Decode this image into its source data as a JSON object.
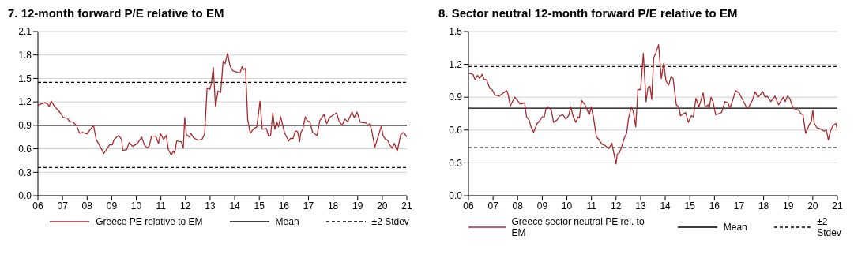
{
  "chart_data": [
    {
      "type": "line",
      "title": "7. 12-month forward P/E relative to EM",
      "xlim": [
        2006,
        2021
      ],
      "xticks": [
        {
          "value": 2006,
          "label": "06"
        },
        {
          "value": 2007,
          "label": "07"
        },
        {
          "value": 2008,
          "label": "08"
        },
        {
          "value": 2009,
          "label": "09"
        },
        {
          "value": 2010,
          "label": "10"
        },
        {
          "value": 2011,
          "label": "11"
        },
        {
          "value": 2012,
          "label": "12"
        },
        {
          "value": 2013,
          "label": "13"
        },
        {
          "value": 2014,
          "label": "14"
        },
        {
          "value": 2015,
          "label": "15"
        },
        {
          "value": 2016,
          "label": "16"
        },
        {
          "value": 2017,
          "label": "17"
        },
        {
          "value": 2018,
          "label": "18"
        },
        {
          "value": 2019,
          "label": "19"
        },
        {
          "value": 2020,
          "label": "20"
        },
        {
          "value": 2021,
          "label": "21"
        }
      ],
      "ylim": [
        0,
        2.1
      ],
      "yticks": [
        {
          "value": 0,
          "label": "0.0"
        },
        {
          "value": 0.3,
          "label": "0.3"
        },
        {
          "value": 0.6,
          "label": "0.6"
        },
        {
          "value": 0.9,
          "label": "0.9"
        },
        {
          "value": 1.2,
          "label": "1.2"
        },
        {
          "value": 1.5,
          "label": "1.5"
        },
        {
          "value": 1.8,
          "label": "1.8"
        },
        {
          "value": 2.1,
          "label": "2.1"
        }
      ],
      "grid": "y",
      "legend": "bottom",
      "marker": "none",
      "line_style": "solid",
      "ref_lines": [
        {
          "axis": "y",
          "value": 0.9,
          "label": "Mean",
          "color": "#000000",
          "line_style": "solid"
        },
        {
          "axis": "y",
          "value": 1.45,
          "label": "±2 Stdev",
          "color": "#000000",
          "line_style": "dashed"
        },
        {
          "axis": "y",
          "value": 0.36,
          "label": null,
          "color": "#000000",
          "line_style": "dashed"
        }
      ],
      "series": [
        {
          "name": "Greece PE relative to EM",
          "color": "#a8282c",
          "x": [
            2006,
            2006.29,
            2006.4,
            2006.46,
            2006.54,
            2006.68,
            2006.8,
            2006.91,
            2007.03,
            2007.2,
            2007.28,
            2007.43,
            2007.57,
            2007.69,
            2007.82,
            2007.99,
            2008.26,
            2008.37,
            2008.51,
            2008.68,
            2008.91,
            2009.02,
            2009.1,
            2009.28,
            2009.4,
            2009.45,
            2009.61,
            2009.71,
            2009.85,
            2010.05,
            2010.22,
            2010.33,
            2010.45,
            2010.52,
            2010.62,
            2010.79,
            2010.9,
            2010.99,
            2011.11,
            2011.22,
            2011.3,
            2011.42,
            2011.51,
            2011.56,
            2011.64,
            2011.82,
            2011.91,
            2011.97,
            2012.04,
            2012.16,
            2012.21,
            2012.33,
            2012.5,
            2012.67,
            2012.78,
            2012.88,
            2012.99,
            2013.05,
            2013.13,
            2013.22,
            2013.32,
            2013.43,
            2013.53,
            2013.61,
            2013.71,
            2013.81,
            2013.92,
            2014.21,
            2014.3,
            2014.35,
            2014.44,
            2014.53,
            2014.63,
            2014.78,
            2014.9,
            2015.03,
            2015.12,
            2015.29,
            2015.38,
            2015.46,
            2015.55,
            2015.63,
            2015.71,
            2015.78,
            2015.87,
            2016.03,
            2016.2,
            2016.26,
            2016.37,
            2016.47,
            2016.56,
            2016.64,
            2016.69,
            2016.77,
            2016.87,
            2016.95,
            2017.06,
            2017.17,
            2017.35,
            2017.46,
            2017.63,
            2017.74,
            2017.85,
            2018.14,
            2018.25,
            2018.37,
            2018.48,
            2018.6,
            2018.77,
            2018.86,
            2018.97,
            2019.11,
            2019.34,
            2019.43,
            2019.48,
            2019.56,
            2019.7,
            2019.96,
            2020.03,
            2020.13,
            2020.22,
            2020.3,
            2020.41,
            2020.49,
            2020.61,
            2020.75,
            2020.87,
            2021
          ],
          "values": [
            1.16,
            1.19,
            1.17,
            1.14,
            1.21,
            1.14,
            1.1,
            1.06,
            1,
            0.99,
            0.95,
            0.94,
            0.9,
            0.8,
            0.81,
            0.79,
            0.9,
            0.72,
            0.64,
            0.54,
            0.65,
            0.65,
            0.72,
            0.77,
            0.72,
            0.58,
            0.59,
            0.68,
            0.63,
            0.67,
            0.75,
            0.65,
            0.61,
            0.63,
            0.76,
            0.76,
            0.67,
            0.79,
            0.72,
            0.77,
            0.59,
            0.52,
            0.57,
            0.54,
            0.7,
            0.69,
            0.61,
            1,
            0.78,
            0.75,
            0.8,
            0.74,
            0.71,
            0.72,
            0.79,
            1.38,
            1.36,
            1.43,
            1.64,
            1.14,
            1.34,
            1.32,
            1.72,
            1.69,
            1.82,
            1.66,
            1.6,
            1.57,
            1.65,
            1.61,
            1.63,
            0.97,
            0.8,
            0.86,
            0.88,
            1.21,
            0.85,
            0.86,
            0.76,
            0.77,
            1.06,
            0.85,
            0.95,
            0.88,
            1.01,
            0.8,
            0.7,
            0.73,
            0.73,
            0.83,
            0.82,
            0.69,
            0.81,
            0.85,
            1.01,
            0.96,
            0.94,
            0.81,
            0.77,
            0.96,
            1.04,
            0.92,
            1,
            1.06,
            0.95,
            0.9,
            0.98,
            0.95,
            1.07,
            1,
            1.07,
            0.94,
            0.93,
            0.9,
            0.92,
            0.85,
            0.62,
            0.89,
            0.77,
            0.72,
            0.71,
            0.65,
            0.61,
            0.67,
            0.57,
            0.78,
            0.81,
            0.75
          ]
        }
      ]
    },
    {
      "type": "line",
      "title": "8. Sector neutral 12-month forward P/E relative to EM",
      "xlim": [
        2006,
        2021
      ],
      "xticks": [
        {
          "value": 2006,
          "label": "06"
        },
        {
          "value": 2007,
          "label": "07"
        },
        {
          "value": 2008,
          "label": "08"
        },
        {
          "value": 2009,
          "label": "09"
        },
        {
          "value": 2010,
          "label": "10"
        },
        {
          "value": 2011,
          "label": "11"
        },
        {
          "value": 2012,
          "label": "12"
        },
        {
          "value": 2013,
          "label": "13"
        },
        {
          "value": 2014,
          "label": "14"
        },
        {
          "value": 2015,
          "label": "15"
        },
        {
          "value": 2016,
          "label": "16"
        },
        {
          "value": 2017,
          "label": "17"
        },
        {
          "value": 2018,
          "label": "18"
        },
        {
          "value": 2019,
          "label": "19"
        },
        {
          "value": 2020,
          "label": "20"
        },
        {
          "value": 2021,
          "label": "21"
        }
      ],
      "ylim": [
        0,
        1.5
      ],
      "yticks": [
        {
          "value": 0,
          "label": "0.0"
        },
        {
          "value": 0.3,
          "label": "0.3"
        },
        {
          "value": 0.6,
          "label": "0.6"
        },
        {
          "value": 0.9,
          "label": "0.9"
        },
        {
          "value": 1.2,
          "label": "1.2"
        },
        {
          "value": 1.5,
          "label": "1.5"
        }
      ],
      "grid": "y",
      "legend": "bottom",
      "marker": "none",
      "line_style": "solid",
      "ref_lines": [
        {
          "axis": "y",
          "value": 0.8,
          "label": "Mean",
          "color": "#000000",
          "line_style": "solid"
        },
        {
          "axis": "y",
          "value": 1.18,
          "label": "±2 Stdev",
          "color": "#000000",
          "line_style": "dashed"
        },
        {
          "axis": "y",
          "value": 0.44,
          "label": null,
          "color": "#000000",
          "line_style": "dashed"
        }
      ],
      "series": [
        {
          "name": "Greece sector neutral PE rel. to EM",
          "color": "#a8282c",
          "x": [
            2006,
            2006.18,
            2006.27,
            2006.37,
            2006.45,
            2006.56,
            2006.64,
            2006.73,
            2006.87,
            2006.96,
            2007.08,
            2007.25,
            2007.42,
            2007.56,
            2007.62,
            2007.7,
            2007.88,
            2008,
            2008.08,
            2008.16,
            2008.28,
            2008.36,
            2008.47,
            2008.54,
            2008.65,
            2008.79,
            2008.91,
            2009,
            2009.08,
            2009.16,
            2009.25,
            2009.37,
            2009.46,
            2009.59,
            2009.71,
            2009.84,
            2009.96,
            2010.07,
            2010.16,
            2010.26,
            2010.37,
            2010.45,
            2010.51,
            2010.6,
            2010.74,
            2010.91,
            2010.99,
            2011.08,
            2011.2,
            2011.31,
            2011.43,
            2011.54,
            2011.71,
            2011.83,
            2011.88,
            2012,
            2012.05,
            2012.13,
            2012.22,
            2012.34,
            2012.43,
            2012.51,
            2012.62,
            2012.7,
            2012.8,
            2012.89,
            2013,
            2013.11,
            2013.22,
            2013.3,
            2013.38,
            2013.45,
            2013.53,
            2013.61,
            2013.73,
            2013.84,
            2013.94,
            2014.03,
            2014.14,
            2014.24,
            2014.32,
            2014.45,
            2014.56,
            2014.62,
            2014.74,
            2014.83,
            2014.94,
            2015.06,
            2015.14,
            2015.25,
            2015.37,
            2015.54,
            2015.62,
            2015.75,
            2015.79,
            2015.86,
            2015.94,
            2016.05,
            2016.17,
            2016.29,
            2016.43,
            2016.55,
            2016.63,
            2016.74,
            2016.86,
            2017,
            2017.14,
            2017.32,
            2017.37,
            2017.54,
            2017.66,
            2017.77,
            2017.89,
            2017.97,
            2018.06,
            2018.15,
            2018.29,
            2018.46,
            2018.61,
            2018.8,
            2018.88,
            2018.97,
            2019.06,
            2019.2,
            2019.31,
            2019.43,
            2019.52,
            2019.6,
            2019.71,
            2019.86,
            2019.94,
            2020,
            2020.06,
            2020.17,
            2020.32,
            2020.46,
            2020.55,
            2020.63,
            2020.72,
            2020.82,
            2020.94,
            2021
          ],
          "values": [
            1.12,
            1.11,
            1.06,
            1.1,
            1.07,
            1.11,
            1.06,
            1.06,
            0.98,
            0.97,
            0.92,
            0.91,
            0.94,
            0.96,
            0.92,
            0.82,
            0.9,
            0.87,
            0.84,
            0.84,
            0.85,
            0.72,
            0.69,
            0.63,
            0.58,
            0.66,
            0.69,
            0.72,
            0.72,
            0.8,
            0.81,
            0.78,
            0.67,
            0.69,
            0.73,
            0.74,
            0.7,
            0.73,
            0.81,
            0.72,
            0.67,
            0.72,
            0.71,
            0.87,
            0.83,
            0.74,
            0.81,
            0.72,
            0.54,
            0.51,
            0.47,
            0.46,
            0.43,
            0.48,
            0.42,
            0.29,
            0.38,
            0.39,
            0.44,
            0.53,
            0.57,
            0.71,
            0.81,
            0.77,
            0.63,
            0.97,
            0.97,
            1.3,
            0.86,
            0.99,
            1,
            0.88,
            1.26,
            1.3,
            1.38,
            1.07,
            1.21,
            1.05,
            1.01,
            1.09,
            1.07,
            0.83,
            0.81,
            0.73,
            0.75,
            0.76,
            0.67,
            0.73,
            0.72,
            0.89,
            0.81,
            0.94,
            0.81,
            0.83,
            0.8,
            0.9,
            0.86,
            0.74,
            0.75,
            0.76,
            0.86,
            0.85,
            0.8,
            0.87,
            0.96,
            0.94,
            0.88,
            0.8,
            0.8,
            0.87,
            0.95,
            0.9,
            0.93,
            0.95,
            0.9,
            0.91,
            0.86,
            0.91,
            0.83,
            0.9,
            0.86,
            0.91,
            0.89,
            0.8,
            0.79,
            0.78,
            0.75,
            0.74,
            0.57,
            0.65,
            0.68,
            0.78,
            0.66,
            0.62,
            0.61,
            0.59,
            0.6,
            0.51,
            0.59,
            0.64,
            0.66,
            0.6
          ]
        }
      ]
    }
  ]
}
